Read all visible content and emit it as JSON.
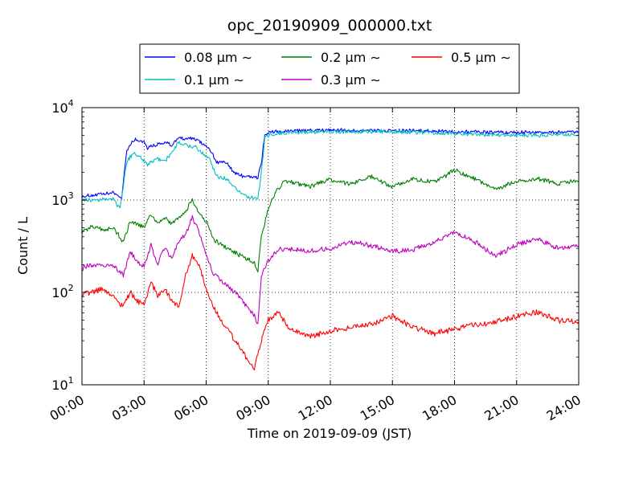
{
  "chart_data": {
    "type": "line",
    "title": "opc_20190909_000000.txt",
    "xlabel": "Time on 2019-09-09 (JST)",
    "ylabel": "Count / L",
    "x_ticks": [
      "00:00",
      "03:00",
      "06:00",
      "09:00",
      "12:00",
      "15:00",
      "18:00",
      "21:00",
      "24:00"
    ],
    "xlim": [
      "00:00",
      "24:00"
    ],
    "y_scale": "log",
    "ylim": [
      10,
      10000
    ],
    "y_ticks": [
      {
        "base": "10",
        "exp": "1"
      },
      {
        "base": "10",
        "exp": "2"
      },
      {
        "base": "10",
        "exp": "3"
      },
      {
        "base": "10",
        "exp": "4"
      }
    ],
    "grid": true,
    "legend_position": "top-center",
    "legend_suffix": "∼",
    "series": [
      {
        "name": "0.08 μm",
        "color": "#0000ff",
        "points": [
          [
            "00:00",
            1100
          ],
          [
            "01:00",
            1150
          ],
          [
            "01:30",
            1200
          ],
          [
            "01:55",
            1050
          ],
          [
            "02:10",
            3500
          ],
          [
            "02:30",
            4500
          ],
          [
            "03:00",
            4300
          ],
          [
            "03:10",
            3700
          ],
          [
            "03:40",
            4000
          ],
          [
            "04:00",
            4200
          ],
          [
            "04:20",
            3900
          ],
          [
            "04:40",
            4800
          ],
          [
            "05:00",
            4500
          ],
          [
            "05:20",
            4700
          ],
          [
            "05:50",
            4100
          ],
          [
            "06:10",
            3600
          ],
          [
            "06:30",
            2600
          ],
          [
            "07:00",
            2500
          ],
          [
            "07:20",
            2000
          ],
          [
            "07:40",
            1850
          ],
          [
            "08:00",
            1800
          ],
          [
            "08:30",
            1750
          ],
          [
            "08:40",
            2500
          ],
          [
            "08:50",
            5200
          ],
          [
            "09:10",
            5400
          ],
          [
            "10:00",
            5600
          ],
          [
            "12:00",
            5700
          ],
          [
            "15:00",
            5650
          ],
          [
            "18:00",
            5500
          ],
          [
            "21:00",
            5400
          ],
          [
            "24:00",
            5400
          ]
        ]
      },
      {
        "name": "0.1 μm",
        "color": "#00bfbf",
        "points": [
          [
            "00:00",
            1000
          ],
          [
            "01:00",
            1000
          ],
          [
            "01:30",
            1050
          ],
          [
            "01:50",
            800
          ],
          [
            "02:10",
            2600
          ],
          [
            "02:30",
            3300
          ],
          [
            "03:00",
            2700
          ],
          [
            "03:10",
            2400
          ],
          [
            "03:40",
            2800
          ],
          [
            "04:00",
            2600
          ],
          [
            "04:20",
            3300
          ],
          [
            "04:40",
            4200
          ],
          [
            "05:00",
            4000
          ],
          [
            "05:30",
            3700
          ],
          [
            "05:50",
            3200
          ],
          [
            "06:10",
            2800
          ],
          [
            "06:30",
            1800
          ],
          [
            "07:00",
            1700
          ],
          [
            "07:20",
            1400
          ],
          [
            "07:40",
            1200
          ],
          [
            "08:00",
            1100
          ],
          [
            "08:30",
            1000
          ],
          [
            "08:40",
            2000
          ],
          [
            "08:50",
            4700
          ],
          [
            "09:10",
            5200
          ],
          [
            "10:00",
            5400
          ],
          [
            "12:00",
            5500
          ],
          [
            "15:00",
            5500
          ],
          [
            "18:00",
            5250
          ],
          [
            "21:00",
            5000
          ],
          [
            "24:00",
            5100
          ]
        ]
      },
      {
        "name": "0.2 μm",
        "color": "#008000",
        "points": [
          [
            "00:00",
            450
          ],
          [
            "00:30",
            520
          ],
          [
            "01:00",
            480
          ],
          [
            "01:30",
            500
          ],
          [
            "02:00",
            350
          ],
          [
            "02:20",
            600
          ],
          [
            "02:40",
            550
          ],
          [
            "03:00",
            500
          ],
          [
            "03:20",
            700
          ],
          [
            "03:40",
            550
          ],
          [
            "04:00",
            650
          ],
          [
            "04:20",
            550
          ],
          [
            "04:40",
            650
          ],
          [
            "05:00",
            750
          ],
          [
            "05:20",
            1000
          ],
          [
            "05:40",
            700
          ],
          [
            "06:00",
            600
          ],
          [
            "06:20",
            380
          ],
          [
            "07:00",
            300
          ],
          [
            "07:40",
            250
          ],
          [
            "08:00",
            230
          ],
          [
            "08:20",
            210
          ],
          [
            "08:30",
            170
          ],
          [
            "08:40",
            400
          ],
          [
            "09:00",
            800
          ],
          [
            "09:20",
            1200
          ],
          [
            "09:40",
            1500
          ],
          [
            "10:00",
            1600
          ],
          [
            "11:00",
            1400
          ],
          [
            "12:00",
            1650
          ],
          [
            "13:00",
            1500
          ],
          [
            "14:00",
            1800
          ],
          [
            "15:00",
            1400
          ],
          [
            "16:00",
            1700
          ],
          [
            "17:00",
            1550
          ],
          [
            "18:00",
            2100
          ],
          [
            "19:00",
            1700
          ],
          [
            "20:00",
            1300
          ],
          [
            "21:00",
            1600
          ],
          [
            "22:00",
            1700
          ],
          [
            "23:00",
            1500
          ],
          [
            "24:00",
            1600
          ]
        ]
      },
      {
        "name": "0.3 μm",
        "color": "#bf00bf",
        "points": [
          [
            "00:00",
            180
          ],
          [
            "00:30",
            200
          ],
          [
            "01:00",
            190
          ],
          [
            "01:30",
            200
          ],
          [
            "02:00",
            150
          ],
          [
            "02:20",
            280
          ],
          [
            "02:40",
            210
          ],
          [
            "03:00",
            190
          ],
          [
            "03:20",
            320
          ],
          [
            "03:40",
            200
          ],
          [
            "04:00",
            310
          ],
          [
            "04:20",
            230
          ],
          [
            "04:40",
            360
          ],
          [
            "05:00",
            420
          ],
          [
            "05:20",
            650
          ],
          [
            "05:40",
            450
          ],
          [
            "06:00",
            250
          ],
          [
            "06:20",
            160
          ],
          [
            "07:00",
            120
          ],
          [
            "07:40",
            85
          ],
          [
            "08:00",
            70
          ],
          [
            "08:20",
            55
          ],
          [
            "08:30",
            45
          ],
          [
            "08:40",
            150
          ],
          [
            "09:00",
            220
          ],
          [
            "09:30",
            300
          ],
          [
            "10:00",
            290
          ],
          [
            "11:00",
            280
          ],
          [
            "12:00",
            300
          ],
          [
            "13:00",
            350
          ],
          [
            "14:00",
            320
          ],
          [
            "15:00",
            280
          ],
          [
            "16:00",
            290
          ],
          [
            "17:00",
            350
          ],
          [
            "18:00",
            450
          ],
          [
            "19:00",
            350
          ],
          [
            "20:00",
            250
          ],
          [
            "21:00",
            330
          ],
          [
            "22:00",
            380
          ],
          [
            "23:00",
            300
          ],
          [
            "24:00",
            320
          ]
        ]
      },
      {
        "name": "0.5 μm",
        "color": "#ff0000",
        "points": [
          [
            "00:00",
            95
          ],
          [
            "00:30",
            100
          ],
          [
            "01:00",
            110
          ],
          [
            "01:30",
            90
          ],
          [
            "02:00",
            70
          ],
          [
            "02:20",
            100
          ],
          [
            "02:40",
            80
          ],
          [
            "03:00",
            75
          ],
          [
            "03:20",
            130
          ],
          [
            "03:40",
            90
          ],
          [
            "04:00",
            110
          ],
          [
            "04:20",
            80
          ],
          [
            "04:40",
            70
          ],
          [
            "05:00",
            150
          ],
          [
            "05:20",
            250
          ],
          [
            "05:40",
            200
          ],
          [
            "06:00",
            110
          ],
          [
            "06:20",
            70
          ],
          [
            "07:00",
            40
          ],
          [
            "07:40",
            25
          ],
          [
            "08:00",
            18
          ],
          [
            "08:20",
            15
          ],
          [
            "08:40",
            30
          ],
          [
            "09:00",
            50
          ],
          [
            "09:30",
            60
          ],
          [
            "10:00",
            40
          ],
          [
            "11:00",
            33
          ],
          [
            "12:00",
            38
          ],
          [
            "13:00",
            42
          ],
          [
            "14:00",
            45
          ],
          [
            "15:00",
            55
          ],
          [
            "16:00",
            42
          ],
          [
            "17:00",
            36
          ],
          [
            "18:00",
            40
          ],
          [
            "19:00",
            45
          ],
          [
            "20:00",
            48
          ],
          [
            "21:00",
            55
          ],
          [
            "22:00",
            62
          ],
          [
            "23:00",
            50
          ],
          [
            "24:00",
            48
          ]
        ]
      }
    ]
  }
}
